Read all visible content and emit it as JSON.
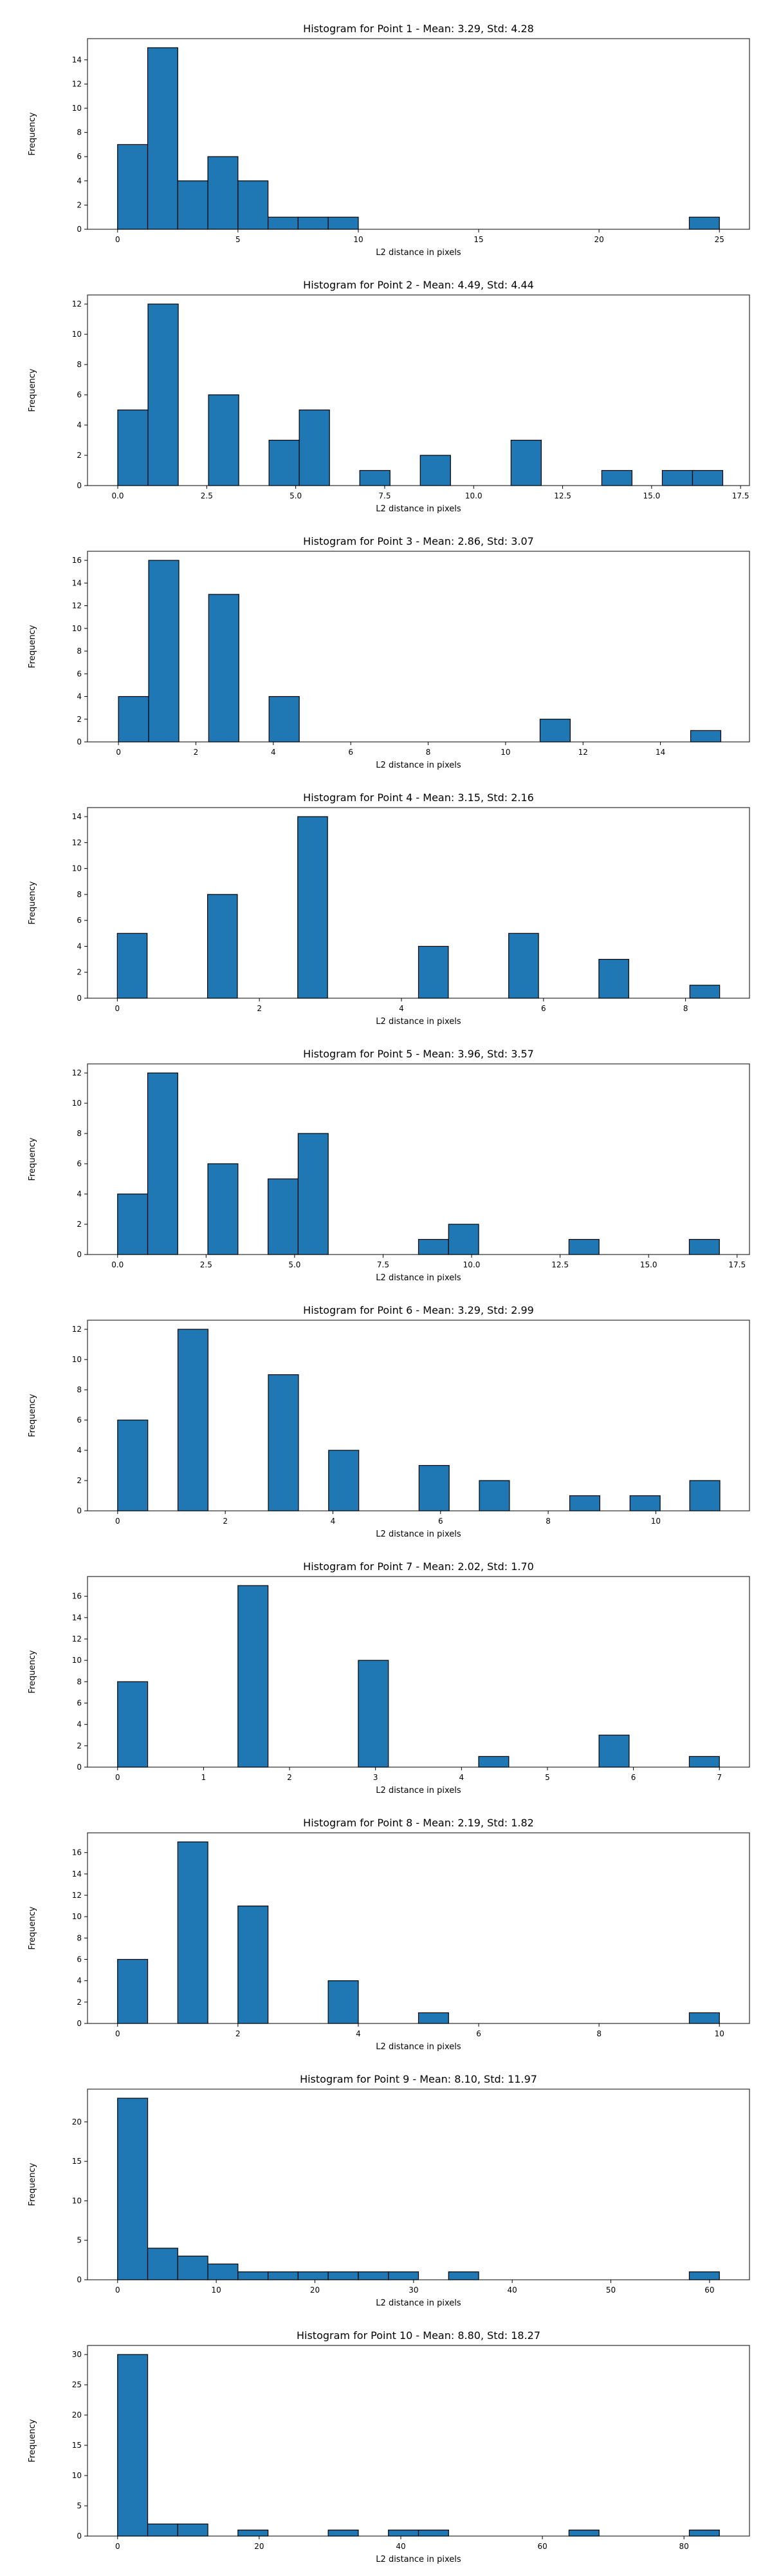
{
  "chart_data": [
    {
      "type": "bar",
      "title": "Histogram for Point 1 - Mean: 3.29, Std: 4.28",
      "xlabel": "L2 distance in pixels",
      "ylabel": "Frequency",
      "xlim": [
        -1.25,
        26.25
      ],
      "ylim": [
        0,
        15.75
      ],
      "xticks": [
        "0",
        "5",
        "10",
        "15",
        "20",
        "25"
      ],
      "xtick_values": [
        0,
        5,
        10,
        15,
        20,
        25
      ],
      "yticks": [
        "0",
        "2",
        "4",
        "6",
        "8",
        "10",
        "12",
        "14"
      ],
      "ytick_values": [
        0,
        2,
        4,
        6,
        8,
        10,
        12,
        14
      ],
      "bins": [
        {
          "x0": 0,
          "x1": 1.25,
          "count": 7
        },
        {
          "x0": 1.25,
          "x1": 2.5,
          "count": 15
        },
        {
          "x0": 2.5,
          "x1": 3.75,
          "count": 4
        },
        {
          "x0": 3.75,
          "x1": 5.0,
          "count": 6
        },
        {
          "x0": 5.0,
          "x1": 6.25,
          "count": 4
        },
        {
          "x0": 6.25,
          "x1": 7.5,
          "count": 1
        },
        {
          "x0": 7.5,
          "x1": 8.75,
          "count": 1
        },
        {
          "x0": 8.75,
          "x1": 10.0,
          "count": 1
        },
        {
          "x0": 23.75,
          "x1": 25.0,
          "count": 1
        }
      ]
    },
    {
      "type": "bar",
      "title": "Histogram for Point 2 - Mean: 4.49, Std: 4.44",
      "xlabel": "L2 distance in pixels",
      "ylabel": "Frequency",
      "xlim": [
        -0.85,
        17.75
      ],
      "ylim": [
        0,
        12.6
      ],
      "xticks": [
        "0.0",
        "2.5",
        "5.0",
        "7.5",
        "10.0",
        "12.5",
        "15.0",
        "17.5"
      ],
      "xtick_values": [
        0,
        2.5,
        5,
        7.5,
        10,
        12.5,
        15,
        17.5
      ],
      "yticks": [
        "0",
        "2",
        "4",
        "6",
        "8",
        "10",
        "12"
      ],
      "ytick_values": [
        0,
        2,
        4,
        6,
        8,
        10,
        12
      ],
      "bins": [
        {
          "x0": 0,
          "x1": 0.85,
          "count": 5
        },
        {
          "x0": 0.85,
          "x1": 1.7,
          "count": 12
        },
        {
          "x0": 2.55,
          "x1": 3.4,
          "count": 6
        },
        {
          "x0": 4.25,
          "x1": 5.1,
          "count": 3
        },
        {
          "x0": 5.1,
          "x1": 5.95,
          "count": 5
        },
        {
          "x0": 6.8,
          "x1": 7.65,
          "count": 1
        },
        {
          "x0": 8.5,
          "x1": 9.35,
          "count": 2
        },
        {
          "x0": 11.05,
          "x1": 11.9,
          "count": 3
        },
        {
          "x0": 13.6,
          "x1": 14.45,
          "count": 1
        },
        {
          "x0": 15.3,
          "x1": 16.15,
          "count": 1
        },
        {
          "x0": 16.15,
          "x1": 17.0,
          "count": 1
        }
      ]
    },
    {
      "type": "bar",
      "title": "Histogram for Point 3 - Mean: 2.86, Std: 3.07",
      "xlabel": "L2 distance in pixels",
      "ylabel": "Frequency",
      "xlim": [
        -0.8,
        16.3
      ],
      "ylim": [
        0,
        16.8
      ],
      "xticks": [
        "0",
        "2",
        "4",
        "6",
        "8",
        "10",
        "12",
        "14"
      ],
      "xtick_values": [
        0,
        2,
        4,
        6,
        8,
        10,
        12,
        14
      ],
      "yticks": [
        "0",
        "2",
        "4",
        "6",
        "8",
        "10",
        "12",
        "14",
        "16"
      ],
      "ytick_values": [
        0,
        2,
        4,
        6,
        8,
        10,
        12,
        14,
        16
      ],
      "bins": [
        {
          "x0": 0,
          "x1": 0.78,
          "count": 4
        },
        {
          "x0": 0.78,
          "x1": 1.56,
          "count": 16
        },
        {
          "x0": 2.33,
          "x1": 3.11,
          "count": 13
        },
        {
          "x0": 3.89,
          "x1": 4.67,
          "count": 4
        },
        {
          "x0": 10.89,
          "x1": 11.67,
          "count": 2
        },
        {
          "x0": 14.78,
          "x1": 15.56,
          "count": 1
        }
      ]
    },
    {
      "type": "bar",
      "title": "Histogram for Point 4 - Mean: 3.15, Std: 2.16",
      "xlabel": "L2 distance in pixels",
      "ylabel": "Frequency",
      "xlim": [
        -0.42,
        8.9
      ],
      "ylim": [
        0,
        14.7
      ],
      "xticks": [
        "0",
        "2",
        "4",
        "6",
        "8"
      ],
      "xtick_values": [
        0,
        2,
        4,
        6,
        8
      ],
      "yticks": [
        "0",
        "2",
        "4",
        "6",
        "8",
        "10",
        "12",
        "14"
      ],
      "ytick_values": [
        0,
        2,
        4,
        6,
        8,
        10,
        12,
        14
      ],
      "bins": [
        {
          "x0": 0,
          "x1": 0.42,
          "count": 5
        },
        {
          "x0": 1.27,
          "x1": 1.69,
          "count": 8
        },
        {
          "x0": 2.54,
          "x1": 2.96,
          "count": 14
        },
        {
          "x0": 4.24,
          "x1": 4.66,
          "count": 4
        },
        {
          "x0": 5.51,
          "x1": 5.93,
          "count": 5
        },
        {
          "x0": 6.78,
          "x1": 7.2,
          "count": 3
        },
        {
          "x0": 8.06,
          "x1": 8.48,
          "count": 1
        }
      ]
    },
    {
      "type": "bar",
      "title": "Histogram for Point 5 - Mean: 3.96, Std: 3.57",
      "xlabel": "L2 distance in pixels",
      "ylabel": "Frequency",
      "xlim": [
        -0.85,
        17.85
      ],
      "ylim": [
        0,
        12.6
      ],
      "xticks": [
        "0.0",
        "2.5",
        "5.0",
        "7.5",
        "10.0",
        "12.5",
        "15.0",
        "17.5"
      ],
      "xtick_values": [
        0,
        2.5,
        5,
        7.5,
        10,
        12.5,
        15,
        17.5
      ],
      "yticks": [
        "0",
        "2",
        "4",
        "6",
        "8",
        "10",
        "12"
      ],
      "ytick_values": [
        0,
        2,
        4,
        6,
        8,
        10,
        12
      ],
      "bins": [
        {
          "x0": 0,
          "x1": 0.85,
          "count": 4
        },
        {
          "x0": 0.85,
          "x1": 1.7,
          "count": 12
        },
        {
          "x0": 2.55,
          "x1": 3.4,
          "count": 6
        },
        {
          "x0": 4.25,
          "x1": 5.1,
          "count": 5
        },
        {
          "x0": 5.1,
          "x1": 5.95,
          "count": 8
        },
        {
          "x0": 8.5,
          "x1": 9.35,
          "count": 1
        },
        {
          "x0": 9.35,
          "x1": 10.2,
          "count": 2
        },
        {
          "x0": 12.75,
          "x1": 13.6,
          "count": 1
        },
        {
          "x0": 16.15,
          "x1": 17.0,
          "count": 1
        }
      ]
    },
    {
      "type": "bar",
      "title": "Histogram for Point 6 - Mean: 3.29, Std: 2.99",
      "xlabel": "L2 distance in pixels",
      "ylabel": "Frequency",
      "xlim": [
        -0.56,
        11.74
      ],
      "ylim": [
        0,
        12.6
      ],
      "xticks": [
        "0",
        "2",
        "4",
        "6",
        "8",
        "10"
      ],
      "xtick_values": [
        0,
        2,
        4,
        6,
        8,
        10
      ],
      "yticks": [
        "0",
        "2",
        "4",
        "6",
        "8",
        "10",
        "12"
      ],
      "ytick_values": [
        0,
        2,
        4,
        6,
        8,
        10,
        12
      ],
      "bins": [
        {
          "x0": 0,
          "x1": 0.56,
          "count": 6
        },
        {
          "x0": 1.12,
          "x1": 1.68,
          "count": 12
        },
        {
          "x0": 2.8,
          "x1": 3.36,
          "count": 9
        },
        {
          "x0": 3.92,
          "x1": 4.48,
          "count": 4
        },
        {
          "x0": 5.6,
          "x1": 6.16,
          "count": 3
        },
        {
          "x0": 6.72,
          "x1": 7.28,
          "count": 2
        },
        {
          "x0": 8.4,
          "x1": 8.96,
          "count": 1
        },
        {
          "x0": 9.52,
          "x1": 10.08,
          "count": 1
        },
        {
          "x0": 10.63,
          "x1": 11.19,
          "count": 2
        }
      ]
    },
    {
      "type": "bar",
      "title": "Histogram for Point 7 - Mean: 2.02, Std: 1.70",
      "xlabel": "L2 distance in pixels",
      "ylabel": "Frequency",
      "xlim": [
        -0.35,
        7.35
      ],
      "ylim": [
        0,
        17.85
      ],
      "xticks": [
        "0",
        "1",
        "2",
        "3",
        "4",
        "5",
        "6",
        "7"
      ],
      "xtick_values": [
        0,
        1,
        2,
        3,
        4,
        5,
        6,
        7
      ],
      "yticks": [
        "0",
        "2",
        "4",
        "6",
        "8",
        "10",
        "12",
        "14",
        "16"
      ],
      "ytick_values": [
        0,
        2,
        4,
        6,
        8,
        10,
        12,
        14,
        16
      ],
      "bins": [
        {
          "x0": 0,
          "x1": 0.35,
          "count": 8
        },
        {
          "x0": 1.4,
          "x1": 1.75,
          "count": 17
        },
        {
          "x0": 2.8,
          "x1": 3.15,
          "count": 10
        },
        {
          "x0": 4.2,
          "x1": 4.55,
          "count": 1
        },
        {
          "x0": 5.6,
          "x1": 5.95,
          "count": 3
        },
        {
          "x0": 6.65,
          "x1": 7.0,
          "count": 1
        }
      ]
    },
    {
      "type": "bar",
      "title": "Histogram for Point 8 - Mean: 2.19, Std: 1.82",
      "xlabel": "L2 distance in pixels",
      "ylabel": "Frequency",
      "xlim": [
        -0.5,
        10.5
      ],
      "ylim": [
        0,
        17.85
      ],
      "xticks": [
        "0",
        "2",
        "4",
        "6",
        "8",
        "10"
      ],
      "xtick_values": [
        0,
        2,
        4,
        6,
        8,
        10
      ],
      "yticks": [
        "0",
        "2",
        "4",
        "6",
        "8",
        "10",
        "12",
        "14",
        "16"
      ],
      "ytick_values": [
        0,
        2,
        4,
        6,
        8,
        10,
        12,
        14,
        16
      ],
      "bins": [
        {
          "x0": 0,
          "x1": 0.5,
          "count": 6
        },
        {
          "x0": 1.0,
          "x1": 1.5,
          "count": 17
        },
        {
          "x0": 2.0,
          "x1": 2.5,
          "count": 11
        },
        {
          "x0": 3.5,
          "x1": 4.0,
          "count": 4
        },
        {
          "x0": 5.0,
          "x1": 5.5,
          "count": 1
        },
        {
          "x0": 9.5,
          "x1": 10.0,
          "count": 1
        }
      ]
    },
    {
      "type": "bar",
      "title": "Histogram for Point 9 - Mean: 8.10, Std: 11.97",
      "xlabel": "L2 distance in pixels",
      "ylabel": "Frequency",
      "xlim": [
        -3.05,
        64.05
      ],
      "ylim": [
        0,
        24.15
      ],
      "xticks": [
        "0",
        "10",
        "20",
        "30",
        "40",
        "50",
        "60"
      ],
      "xtick_values": [
        0,
        10,
        20,
        30,
        40,
        50,
        60
      ],
      "yticks": [
        "0",
        "5",
        "10",
        "15",
        "20"
      ],
      "ytick_values": [
        0,
        5,
        10,
        15,
        20
      ],
      "bins": [
        {
          "x0": 0,
          "x1": 3.05,
          "count": 23
        },
        {
          "x0": 3.05,
          "x1": 6.1,
          "count": 4
        },
        {
          "x0": 6.1,
          "x1": 9.15,
          "count": 3
        },
        {
          "x0": 9.15,
          "x1": 12.2,
          "count": 2
        },
        {
          "x0": 12.2,
          "x1": 15.25,
          "count": 1
        },
        {
          "x0": 15.25,
          "x1": 18.3,
          "count": 1
        },
        {
          "x0": 18.3,
          "x1": 21.35,
          "count": 1
        },
        {
          "x0": 21.35,
          "x1": 24.4,
          "count": 1
        },
        {
          "x0": 24.4,
          "x1": 27.45,
          "count": 1
        },
        {
          "x0": 27.45,
          "x1": 30.5,
          "count": 1
        },
        {
          "x0": 33.55,
          "x1": 36.6,
          "count": 1
        },
        {
          "x0": 57.95,
          "x1": 61.0,
          "count": 1
        }
      ]
    },
    {
      "type": "bar",
      "title": "Histogram for Point 10 - Mean: 8.80, Std: 18.27",
      "xlabel": "L2 distance in pixels",
      "ylabel": "Frequency",
      "xlim": [
        -4.25,
        89.25
      ],
      "ylim": [
        0,
        31.5
      ],
      "xticks": [
        "0",
        "20",
        "40",
        "60",
        "80"
      ],
      "xtick_values": [
        0,
        20,
        40,
        60,
        80
      ],
      "yticks": [
        "0",
        "5",
        "10",
        "15",
        "20",
        "25",
        "30"
      ],
      "ytick_values": [
        0,
        5,
        10,
        15,
        20,
        25,
        30
      ],
      "bins": [
        {
          "x0": 0,
          "x1": 4.25,
          "count": 30
        },
        {
          "x0": 4.25,
          "x1": 8.5,
          "count": 2
        },
        {
          "x0": 8.5,
          "x1": 12.75,
          "count": 2
        },
        {
          "x0": 17.0,
          "x1": 21.25,
          "count": 1
        },
        {
          "x0": 29.75,
          "x1": 34.0,
          "count": 1
        },
        {
          "x0": 38.25,
          "x1": 42.5,
          "count": 1
        },
        {
          "x0": 42.5,
          "x1": 46.75,
          "count": 1
        },
        {
          "x0": 63.75,
          "x1": 68.0,
          "count": 1
        },
        {
          "x0": 80.75,
          "x1": 85.0,
          "count": 1
        }
      ]
    }
  ]
}
